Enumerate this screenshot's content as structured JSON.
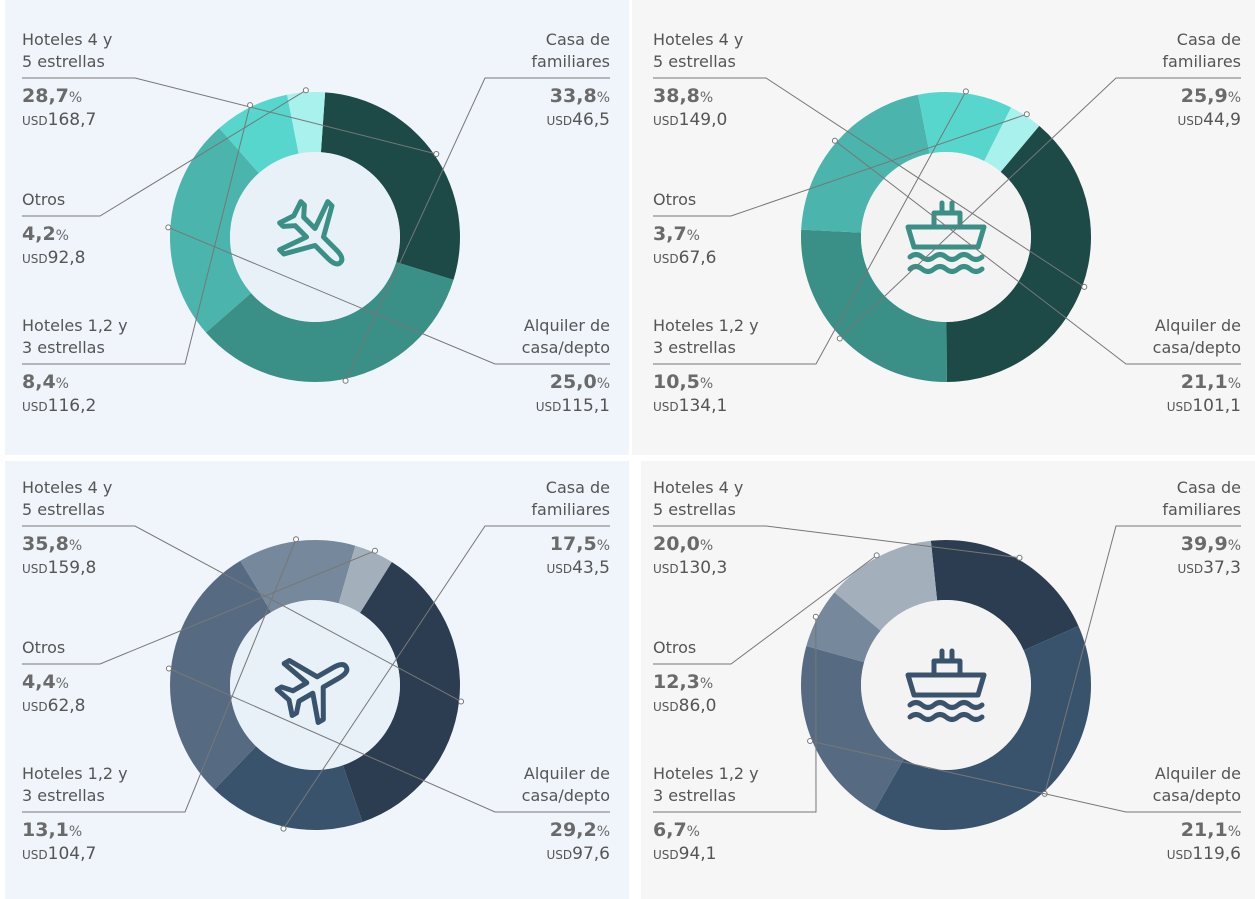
{
  "chart_data": [
    {
      "type": "donut",
      "percent_sign": "%",
      "currency": "USD",
      "categories": [
        [
          "Hoteles 4 y",
          "5 estrellas"
        ],
        [
          "Casa de",
          "familiares"
        ],
        [
          "Alquiler de",
          "casa/depto"
        ],
        [
          "Hoteles 1,2 y",
          "3 estrellas"
        ],
        [
          "Otros"
        ]
      ],
      "values": [
        28.7,
        33.8,
        25.0,
        8.4,
        4.2
      ],
      "value_labels": [
        "28,7",
        "33,8",
        "25,0",
        "8,4",
        "4,2"
      ],
      "amounts": [
        "168,7",
        "46,5",
        "115,1",
        "116,2",
        "92,8"
      ],
      "colors": [
        "#1d4947",
        "#3a8f86",
        "#4bb4ad",
        "#57d6ce",
        "#a9f1ec"
      ]
    },
    {
      "type": "donut",
      "percent_sign": "%",
      "currency": "USD",
      "categories": [
        [
          "Hoteles 4 y",
          "5 estrellas"
        ],
        [
          "Casa de",
          "familiares"
        ],
        [
          "Alquiler de",
          "casa/depto"
        ],
        [
          "Hoteles 1,2 y",
          "3 estrellas"
        ],
        [
          "Otros"
        ]
      ],
      "values": [
        38.8,
        25.9,
        21.1,
        10.5,
        3.7
      ],
      "value_labels": [
        "38,8",
        "25,9",
        "21,1",
        "10,5",
        "3,7"
      ],
      "amounts": [
        "149,0",
        "44,9",
        "101,1",
        "134,1",
        "67,6"
      ],
      "colors": [
        "#1d4947",
        "#3a8f86",
        "#4bb4ad",
        "#57d6ce",
        "#a9f1ec"
      ]
    },
    {
      "type": "donut",
      "percent_sign": "%",
      "currency": "USD",
      "categories": [
        [
          "Hoteles 4 y",
          "5 estrellas"
        ],
        [
          "Casa de",
          "familiares"
        ],
        [
          "Alquiler de",
          "casa/depto"
        ],
        [
          "Hoteles 1,2 y",
          "3 estrellas"
        ],
        [
          "Otros"
        ]
      ],
      "values": [
        35.8,
        17.5,
        29.2,
        13.1,
        4.4
      ],
      "value_labels": [
        "35,8",
        "17,5",
        "29,2",
        "13,1",
        "4,4"
      ],
      "amounts": [
        "159,8",
        "43,5",
        "97,6",
        "104,7",
        "62,8"
      ],
      "colors": [
        "#2c3d51",
        "#3a536d",
        "#566b82",
        "#76889c",
        "#a4afbc"
      ]
    },
    {
      "type": "donut",
      "percent_sign": "%",
      "currency": "USD",
      "categories": [
        [
          "Hoteles 4 y",
          "5 estrellas"
        ],
        [
          "Casa de",
          "familiares"
        ],
        [
          "Alquiler de",
          "casa/depto"
        ],
        [
          "Hoteles 1,2 y",
          "3 estrellas"
        ],
        [
          "Otros"
        ]
      ],
      "values": [
        20.0,
        39.9,
        21.1,
        6.7,
        12.3
      ],
      "value_labels": [
        "20,0",
        "39,9",
        "21,1",
        "6,7",
        "12,3"
      ],
      "amounts": [
        "130,3",
        "37,3",
        "119,6",
        "94,1",
        "86,0"
      ],
      "colors": [
        "#2c3d51",
        "#3a536d",
        "#566b82",
        "#76889c",
        "#a4afbc"
      ]
    }
  ]
}
